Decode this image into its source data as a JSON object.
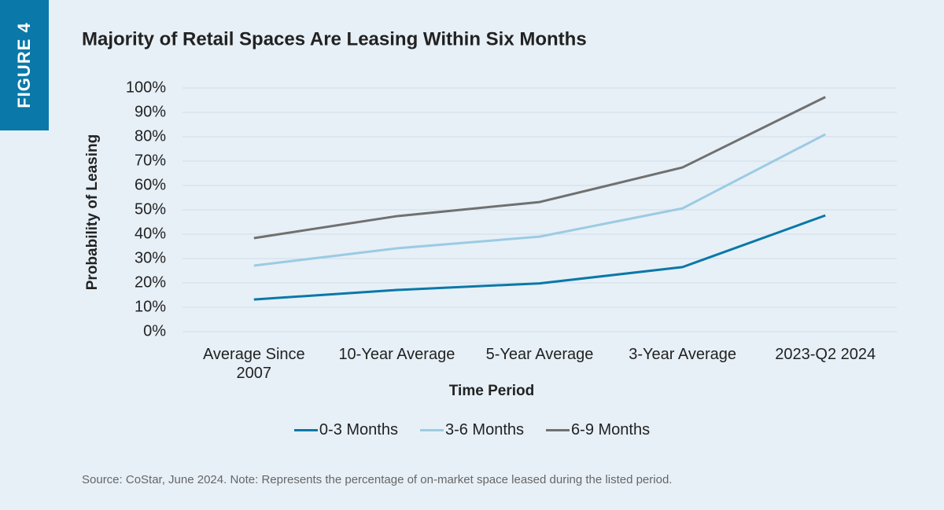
{
  "figure_label": "FIGURE 4",
  "source_note": "Source: CoStar, June 2024. Note: Represents the percentage of on-market space leased during the listed period.",
  "chart_data": {
    "type": "line",
    "title": "Majority of Retail Spaces Are Leasing Within Six Months",
    "x_label": "Time Period",
    "y_label": "Probability of Leasing",
    "categories": [
      "Average Since 2007",
      "10-Year Average",
      "5-Year Average",
      "3-Year Average",
      "2023-Q2 2024"
    ],
    "series": [
      {
        "name": "0-3 Months",
        "color": "#0a78a8",
        "values": [
          13.2,
          17.1,
          19.8,
          26.5,
          47.7
        ]
      },
      {
        "name": "3-6 Months",
        "color": "#9ccbe3",
        "values": [
          27.1,
          34.2,
          39,
          50.6,
          81
        ]
      },
      {
        "name": "6-9 Months",
        "color": "#707070",
        "values": [
          38.4,
          47.4,
          53.2,
          67.4,
          96.3
        ]
      }
    ],
    "ylim": [
      0,
      100
    ],
    "yticks": [
      {
        "value": 0,
        "label": "0%"
      },
      {
        "value": 10,
        "label": "10%"
      },
      {
        "value": 20,
        "label": "20%"
      },
      {
        "value": 30,
        "label": "30%"
      },
      {
        "value": 40,
        "label": "40%"
      },
      {
        "value": 50,
        "label": "50%"
      },
      {
        "value": 60,
        "label": "60%"
      },
      {
        "value": 70,
        "label": "70%"
      },
      {
        "value": 80,
        "label": "80%"
      },
      {
        "value": 90,
        "label": "90%"
      },
      {
        "value": 100,
        "label": "100%"
      }
    ],
    "grid": true,
    "legend": "bottom"
  }
}
